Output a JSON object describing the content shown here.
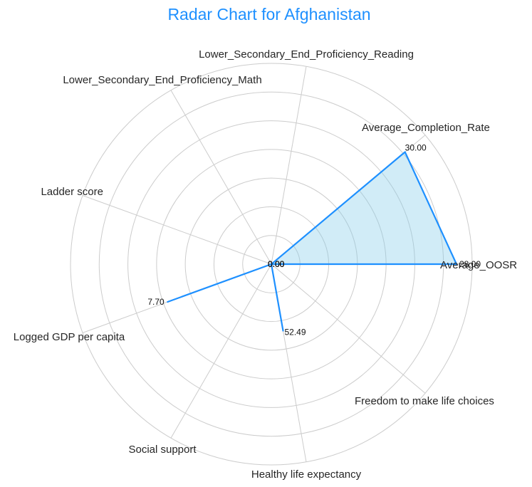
{
  "chart_data": {
    "type": "radar",
    "title": "Radar Chart for Afghanistan",
    "axes": [
      "Average_OOSR",
      "Average_Completion_Rate",
      "Lower_Secondary_End_Proficiency_Reading",
      "Lower_Secondary_End_Proficiency_Math",
      "Ladder score",
      "Logged GDP per capita",
      "Social support",
      "Healthy life expectancy",
      "Freedom to make life choices"
    ],
    "values": [
      28.0,
      30.0,
      0.0,
      0.0,
      0.0,
      7.7,
      0.0,
      52.49,
      0.0
    ],
    "value_labels": [
      "28.00",
      "30.00",
      "0.00",
      "0.00",
      "0.00",
      "7.70",
      "0.00",
      "52.49",
      "0.00"
    ],
    "radial_grid": true,
    "grid_rings": 7,
    "colors": {
      "title": "#1E90FF",
      "line": "#1E90FF",
      "fill": "#87CEEB",
      "grid": "#CCCCCC"
    }
  }
}
